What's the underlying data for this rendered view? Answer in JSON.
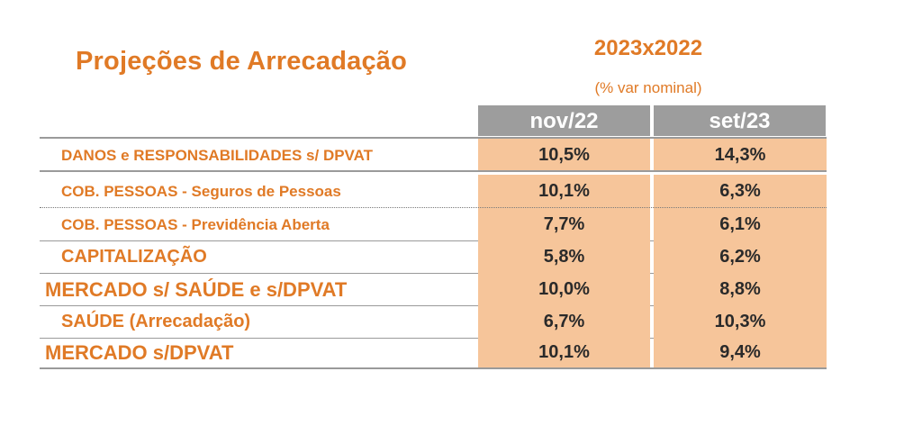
{
  "title": "Projeções de Arrecadação",
  "period": "2023x2022",
  "period_note": "(% var nominal)",
  "columns": [
    "nov/22",
    "set/23"
  ],
  "rows": [
    {
      "label": "DANOS e RESPONSABILIDADES s/ DPVAT",
      "nov22": "10,5%",
      "set23": "14,3%"
    },
    {
      "label": "COB. PESSOAS  - Seguros de Pessoas",
      "nov22": "10,1%",
      "set23": "6,3%"
    },
    {
      "label": "COB. PESSOAS  - Previdência Aberta",
      "nov22": "7,7%",
      "set23": "6,1%"
    },
    {
      "label": "CAPITALIZAÇÃO",
      "nov22": "5,8%",
      "set23": "6,2%"
    },
    {
      "label": "MERCADO s/ SAÚDE e s/DPVAT",
      "nov22": "10,0%",
      "set23": "8,8%"
    },
    {
      "label": "SAÚDE (Arrecadação)",
      "nov22": "6,7%",
      "set23": "10,3%"
    },
    {
      "label": "MERCADO s/DPVAT",
      "nov22": "10,1%",
      "set23": "9,4%"
    }
  ],
  "colors": {
    "accent": "#e07a26",
    "header_bg": "#9d9d9d",
    "cell_bg": "#f6c59a"
  }
}
